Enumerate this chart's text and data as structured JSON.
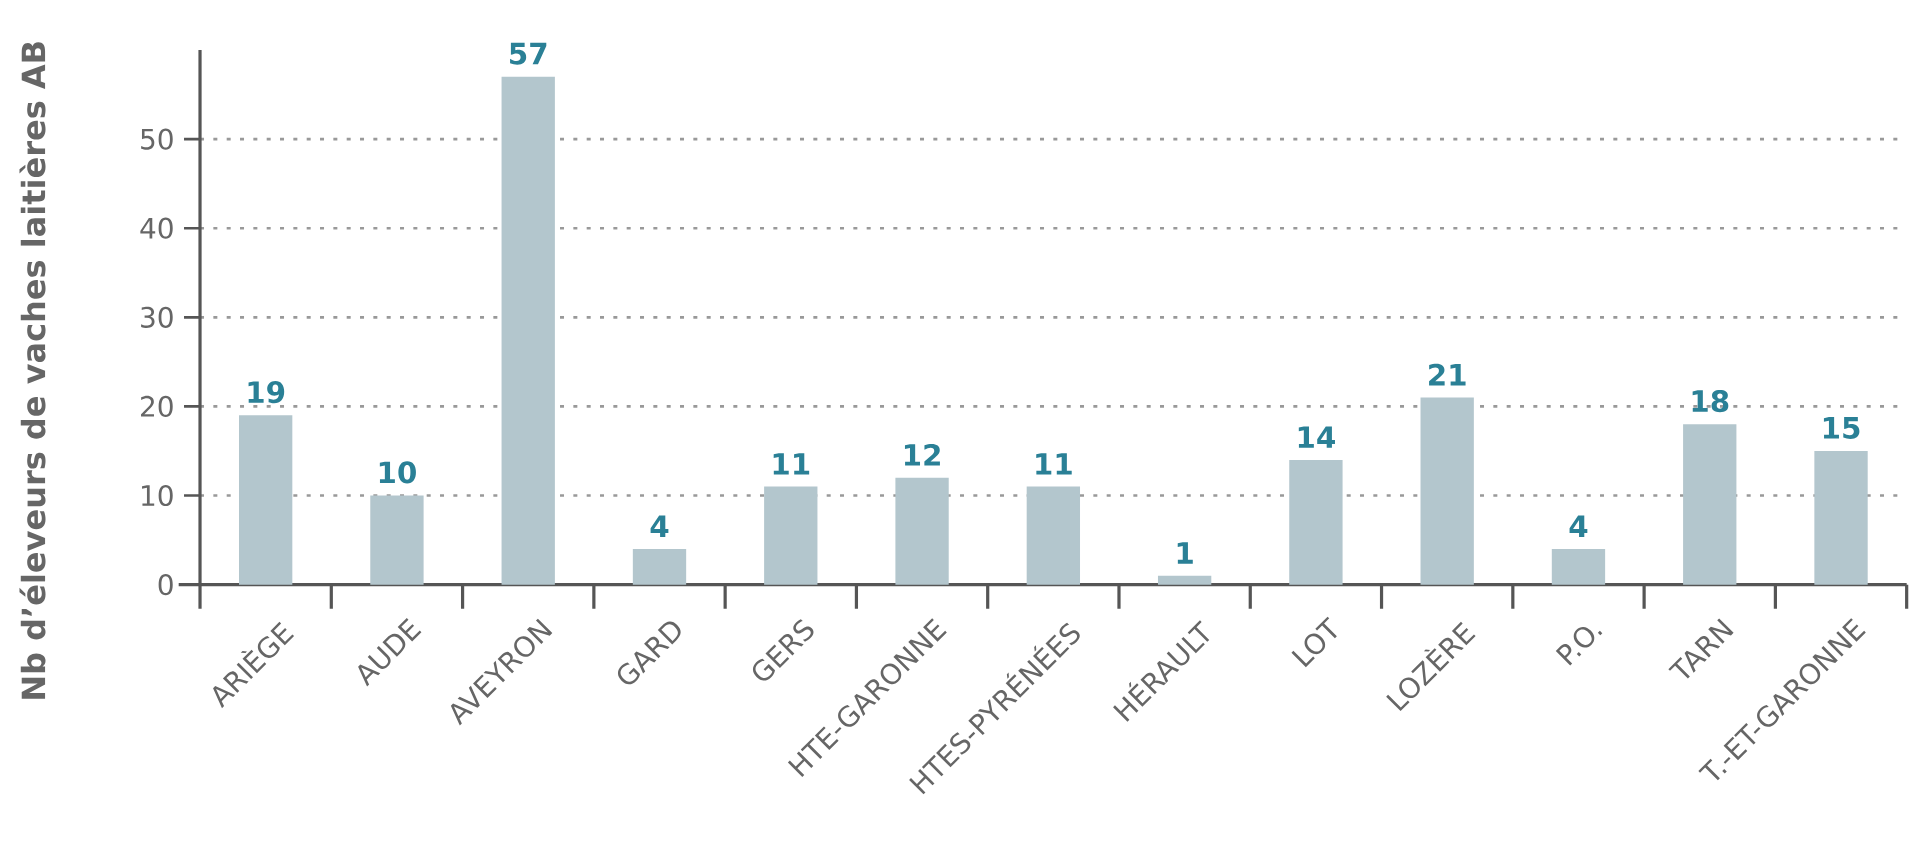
{
  "chart_data": {
    "type": "bar",
    "ylabel": "Nb d’éleveurs de vaches laitières AB",
    "categories": [
      "ARIÈGE",
      "AUDE",
      "AVEYRON",
      "GARD",
      "GERS",
      "HTE-GARONNE",
      "HTES-PYRÉNÉES",
      "HÉRAULT",
      "LOT",
      "LOZÈRE",
      "P.O.",
      "TARN",
      "T.-ET-GARONNE"
    ],
    "values": [
      19,
      10,
      57,
      4,
      11,
      12,
      11,
      1,
      14,
      21,
      4,
      18,
      15
    ],
    "color": "#b3c6cd",
    "data_labels": true,
    "ylim": [
      0,
      60
    ],
    "yticks": [
      0,
      10,
      20,
      30,
      40,
      50
    ],
    "grid": "y"
  }
}
